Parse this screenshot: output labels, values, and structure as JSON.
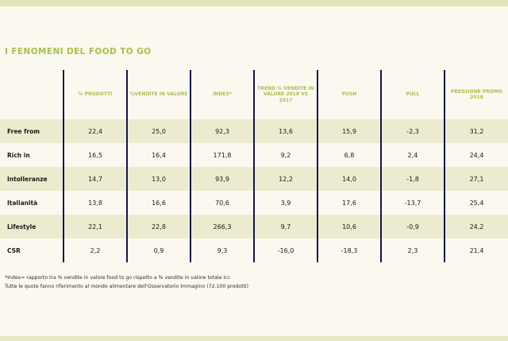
{
  "title": "I FENOMENI DEL FOOD TO GO",
  "columns": [
    "% PRODOTTI",
    "%VENDITE IN VALORE",
    "INDEX*",
    "TREND % VENDITE IN VALORE 2018 VS 2017",
    "PUSH",
    "PULL",
    "PRESSIONE PROMO 2018"
  ],
  "rows": [
    {
      "label": "Free from",
      "values": [
        "22,4",
        "25,0",
        "92,3",
        "13,6",
        "15,9",
        "-2,3",
        "31,2"
      ]
    },
    {
      "label": "Rich in",
      "values": [
        "16,5",
        "16,4",
        "171,8",
        "9,2",
        "6,8",
        "2,4",
        "24,4"
      ]
    },
    {
      "label": "Intolleranze",
      "values": [
        "14,7",
        "13,0",
        "93,9",
        "12,2",
        "14,0",
        "-1,8",
        "27,1"
      ]
    },
    {
      "label": "Italianità",
      "values": [
        "13,8",
        "16,6",
        "70,6",
        "3,9",
        "17,6",
        "-13,7",
        "25,4"
      ]
    },
    {
      "label": "Lifestyle",
      "values": [
        "22,1",
        "22,8",
        "266,3",
        "9,7",
        "10,6",
        "-0,9",
        "24,2"
      ]
    },
    {
      "label": "CSR",
      "values": [
        "2,2",
        "0,9",
        "9,3",
        "-16,0",
        "-18,3",
        "2,3",
        "21,4"
      ]
    }
  ],
  "notes": [
    "*Index= rapporto tra % vendite in valore food to go rispetto a % vendite in valore totale lcc",
    "Tutte le quote fanno riferimento al mondo alimentare dell'Osservatorio Immagino (72.100 prodotti)"
  ],
  "colors": {
    "accent": "#a8bf4d",
    "separator": "#141450",
    "shade": "#ecebd0",
    "background": "#fbf9ef"
  }
}
